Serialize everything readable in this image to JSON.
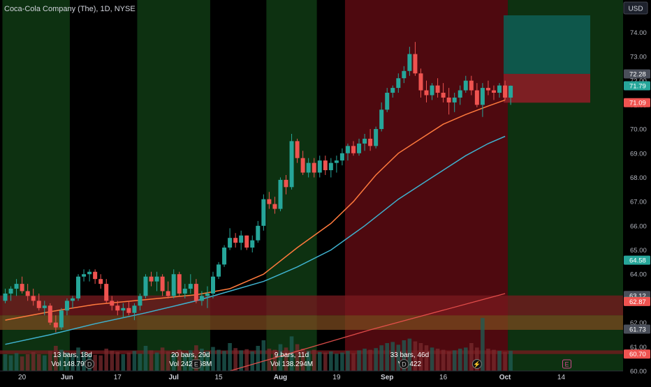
{
  "header": {
    "symbol_title": "Coca-Cola Company (The), 1D, NYSE",
    "currency_button": "USD"
  },
  "colors": {
    "background": "#000000",
    "up": "#26a69a",
    "down": "#ef5350",
    "ma_fast": "#ff7a3d",
    "ma_slow": "#3fb2cf",
    "zone_green": "#0f3a14",
    "zone_red": "#5c0b12",
    "band_red": "#7a1a1f",
    "band_orange": "#7a4a1f"
  },
  "chart_data": {
    "type": "candlestick",
    "ylim": [
      60.0,
      74.7
    ],
    "price_ticks": [
      "60.00",
      "61.00",
      "62.00",
      "63.00",
      "64.00",
      "65.00",
      "66.00",
      "67.00",
      "68.00",
      "69.00",
      "70.00",
      "71.00",
      "72.00",
      "73.00",
      "74.00"
    ],
    "price_labels": [
      {
        "text": "72.28",
        "value": 72.28,
        "bg": "#4a4f5a",
        "fg": "#ffffff"
      },
      {
        "text": "71.79",
        "value": 71.79,
        "bg": "#26a69a",
        "fg": "#ffffff"
      },
      {
        "text": "71.09",
        "value": 71.09,
        "bg": "#ef5350",
        "fg": "#ffffff"
      },
      {
        "text": "64.58",
        "value": 64.58,
        "bg": "#26a69a",
        "fg": "#ffffff"
      },
      {
        "text": "63.12",
        "value": 63.12,
        "bg": "#4a4f5a",
        "fg": "#ffffff"
      },
      {
        "text": "62.88",
        "value": 62.88,
        "bg": "#26a69a",
        "fg": "#ffffff"
      },
      {
        "text": "62.87",
        "value": 62.87,
        "bg": "#ef5350",
        "fg": "#ffffff"
      },
      {
        "text": "61.73",
        "value": 61.73,
        "bg": "#4a4f5a",
        "fg": "#ffffff"
      },
      {
        "text": "60.70",
        "value": 60.7,
        "bg": "#ef5350",
        "fg": "#ffffff"
      }
    ],
    "date_ticks": [
      {
        "label": "20",
        "index": 3
      },
      {
        "label": "Jun",
        "index": 11,
        "bold": true
      },
      {
        "label": "17",
        "index": 20
      },
      {
        "label": "Jul",
        "index": 30,
        "bold": true
      },
      {
        "label": "15",
        "index": 38
      },
      {
        "label": "Aug",
        "index": 49,
        "bold": true
      },
      {
        "label": "19",
        "index": 59
      },
      {
        "label": "Sep",
        "index": 68,
        "bold": true
      },
      {
        "label": "16",
        "index": 78
      },
      {
        "label": "Oct",
        "index": 89,
        "bold": true
      },
      {
        "label": "14",
        "index": 99
      }
    ],
    "candles": [
      [
        62.9,
        63.4,
        62.8,
        63.2
      ],
      [
        63.2,
        63.5,
        62.9,
        63.4
      ],
      [
        63.4,
        63.8,
        63.1,
        63.6
      ],
      [
        63.6,
        63.9,
        63.2,
        63.3
      ],
      [
        63.3,
        63.6,
        62.9,
        63.1
      ],
      [
        63.1,
        63.4,
        62.7,
        62.9
      ],
      [
        62.9,
        63.2,
        62.5,
        62.6
      ],
      [
        62.6,
        62.9,
        62.3,
        62.7
      ],
      [
        62.7,
        62.8,
        61.9,
        62.0
      ],
      [
        62.0,
        62.3,
        61.6,
        61.8
      ],
      [
        61.8,
        62.6,
        61.7,
        62.5
      ],
      [
        62.5,
        63.0,
        62.3,
        62.9
      ],
      [
        62.9,
        63.1,
        62.6,
        63.0
      ],
      [
        63.0,
        64.0,
        62.9,
        63.9
      ],
      [
        63.9,
        64.2,
        63.7,
        64.0
      ],
      [
        64.0,
        64.2,
        63.7,
        64.1
      ],
      [
        64.1,
        64.2,
        63.6,
        63.8
      ],
      [
        63.8,
        64.0,
        63.4,
        63.6
      ],
      [
        63.6,
        63.8,
        62.8,
        62.9
      ],
      [
        62.9,
        63.1,
        62.5,
        62.7
      ],
      [
        62.7,
        62.9,
        62.3,
        62.5
      ],
      [
        62.5,
        62.8,
        62.2,
        62.6
      ],
      [
        62.6,
        62.9,
        62.3,
        62.4
      ],
      [
        62.4,
        62.8,
        62.1,
        62.7
      ],
      [
        62.7,
        63.2,
        62.5,
        63.1
      ],
      [
        63.1,
        64.0,
        63.0,
        63.9
      ],
      [
        63.9,
        64.1,
        63.5,
        63.7
      ],
      [
        63.7,
        64.1,
        63.3,
        63.9
      ],
      [
        63.9,
        64.0,
        63.1,
        63.3
      ],
      [
        63.3,
        63.7,
        63.0,
        63.1
      ],
      [
        63.1,
        64.2,
        63.0,
        64.0
      ],
      [
        64.0,
        64.1,
        63.1,
        63.2
      ],
      [
        63.2,
        63.6,
        63.0,
        63.4
      ],
      [
        63.4,
        64.0,
        63.2,
        63.6
      ],
      [
        63.6,
        63.8,
        62.8,
        62.9
      ],
      [
        62.9,
        63.3,
        62.7,
        63.1
      ],
      [
        63.1,
        63.5,
        62.6,
        63.2
      ],
      [
        63.2,
        64.1,
        63.0,
        63.9
      ],
      [
        63.9,
        64.5,
        63.8,
        64.4
      ],
      [
        64.4,
        65.2,
        64.3,
        65.1
      ],
      [
        65.1,
        65.9,
        65.0,
        65.5
      ],
      [
        65.5,
        65.7,
        65.1,
        65.3
      ],
      [
        65.3,
        65.8,
        65.0,
        65.6
      ],
      [
        65.6,
        65.6,
        65.0,
        65.1
      ],
      [
        65.1,
        65.6,
        64.9,
        65.4
      ],
      [
        65.4,
        66.2,
        65.3,
        66.0
      ],
      [
        66.0,
        67.3,
        65.8,
        67.1
      ],
      [
        67.1,
        67.4,
        66.7,
        66.9
      ],
      [
        66.9,
        67.2,
        66.5,
        66.7
      ],
      [
        66.7,
        68.0,
        66.6,
        67.9
      ],
      [
        67.9,
        68.1,
        67.3,
        67.6
      ],
      [
        67.6,
        69.8,
        67.5,
        69.5
      ],
      [
        69.5,
        69.6,
        68.6,
        68.8
      ],
      [
        68.8,
        69.1,
        68.1,
        68.2
      ],
      [
        68.2,
        68.8,
        68.0,
        68.6
      ],
      [
        68.6,
        68.8,
        68.0,
        68.2
      ],
      [
        68.2,
        68.9,
        68.0,
        68.7
      ],
      [
        68.7,
        68.9,
        68.1,
        68.3
      ],
      [
        68.3,
        68.8,
        68.0,
        68.6
      ],
      [
        68.6,
        68.9,
        68.2,
        68.7
      ],
      [
        68.7,
        69.2,
        68.5,
        69.0
      ],
      [
        69.0,
        69.4,
        68.7,
        69.3
      ],
      [
        69.3,
        69.5,
        68.9,
        69.0
      ],
      [
        69.0,
        69.6,
        68.9,
        69.4
      ],
      [
        69.4,
        69.8,
        69.1,
        69.6
      ],
      [
        69.6,
        70.0,
        69.1,
        69.3
      ],
      [
        69.3,
        70.1,
        69.2,
        70.0
      ],
      [
        70.0,
        71.1,
        69.9,
        70.8
      ],
      [
        70.8,
        71.7,
        70.7,
        71.5
      ],
      [
        71.5,
        71.8,
        71.3,
        71.7
      ],
      [
        71.7,
        72.3,
        71.5,
        72.1
      ],
      [
        72.1,
        72.6,
        71.9,
        72.4
      ],
      [
        72.4,
        73.4,
        72.2,
        73.1
      ],
      [
        73.1,
        73.6,
        72.2,
        72.3
      ],
      [
        72.3,
        72.5,
        71.3,
        71.6
      ],
      [
        71.6,
        72.0,
        71.1,
        71.4
      ],
      [
        71.4,
        71.9,
        71.2,
        71.8
      ],
      [
        71.8,
        72.1,
        71.3,
        71.5
      ],
      [
        71.5,
        71.9,
        71.1,
        71.3
      ],
      [
        71.3,
        71.7,
        70.6,
        71.1
      ],
      [
        71.1,
        71.5,
        70.7,
        71.3
      ],
      [
        71.3,
        71.8,
        71.0,
        71.6
      ],
      [
        71.6,
        72.2,
        71.5,
        72.0
      ],
      [
        72.0,
        72.2,
        71.4,
        71.6
      ],
      [
        71.6,
        71.9,
        70.9,
        71.0
      ],
      [
        71.0,
        71.9,
        70.5,
        71.7
      ],
      [
        71.7,
        72.0,
        71.4,
        71.6
      ],
      [
        71.6,
        71.8,
        71.2,
        71.5
      ],
      [
        71.5,
        71.9,
        71.3,
        71.8
      ],
      [
        71.8,
        72.0,
        71.2,
        71.3
      ],
      [
        71.3,
        71.8,
        71.0,
        71.79
      ]
    ],
    "ma_fast": [
      [
        0,
        62.1
      ],
      [
        8,
        62.45
      ],
      [
        16,
        62.75
      ],
      [
        25,
        62.95
      ],
      [
        34,
        63.15
      ],
      [
        40,
        63.4
      ],
      [
        46,
        64.0
      ],
      [
        52,
        65.1
      ],
      [
        58,
        66.1
      ],
      [
        62,
        67.0
      ],
      [
        66,
        68.1
      ],
      [
        70,
        69.0
      ],
      [
        74,
        69.6
      ],
      [
        78,
        70.2
      ],
      [
        82,
        70.6
      ],
      [
        86,
        70.95
      ],
      [
        89,
        71.2
      ]
    ],
    "ma_slow": [
      [
        0,
        61.1
      ],
      [
        8,
        61.5
      ],
      [
        16,
        61.95
      ],
      [
        25,
        62.4
      ],
      [
        34,
        62.9
      ],
      [
        40,
        63.3
      ],
      [
        46,
        63.7
      ],
      [
        52,
        64.3
      ],
      [
        58,
        65.0
      ],
      [
        64,
        66.0
      ],
      [
        70,
        67.1
      ],
      [
        76,
        68.0
      ],
      [
        82,
        68.9
      ],
      [
        86,
        69.4
      ],
      [
        89,
        69.7
      ]
    ],
    "long_trend": [
      [
        40,
        60.0
      ],
      [
        65,
        61.7
      ],
      [
        89,
        63.2
      ]
    ],
    "volume": [
      0.3,
      0.28,
      0.32,
      0.26,
      0.3,
      0.34,
      0.3,
      0.28,
      0.36,
      0.45,
      0.38,
      0.33,
      0.3,
      0.42,
      0.35,
      0.31,
      0.29,
      0.28,
      0.4,
      0.36,
      0.34,
      0.3,
      0.33,
      0.36,
      0.31,
      0.45,
      0.37,
      0.33,
      0.42,
      0.35,
      0.31,
      0.38,
      0.32,
      0.37,
      0.46,
      0.4,
      0.35,
      0.43,
      0.38,
      0.36,
      0.5,
      0.41,
      0.37,
      0.39,
      0.35,
      0.45,
      0.55,
      0.4,
      0.38,
      0.48,
      0.42,
      0.62,
      0.48,
      0.4,
      0.36,
      0.38,
      0.34,
      0.33,
      0.35,
      0.31,
      0.33,
      0.36,
      0.32,
      0.37,
      0.4,
      0.38,
      0.41,
      0.46,
      0.5,
      0.52,
      0.47,
      0.55,
      0.58,
      0.53,
      0.5,
      0.46,
      0.42,
      0.4,
      0.38,
      0.35,
      0.37,
      0.4,
      0.42,
      0.5,
      0.42,
      0.95,
      0.4,
      0.38,
      0.36,
      0.34,
      0.36
    ],
    "zones": [
      {
        "type": "green",
        "start": -1,
        "end": 11
      },
      {
        "type": "black",
        "start": 11,
        "end": 23
      },
      {
        "type": "green",
        "start": 23,
        "end": 36
      },
      {
        "type": "black",
        "start": 36,
        "end": 46
      },
      {
        "type": "green",
        "start": 46,
        "end": 55
      },
      {
        "type": "black",
        "start": 55,
        "end": 60
      },
      {
        "type": "red",
        "start": 60,
        "end": 89
      },
      {
        "type": "green",
        "start": 89,
        "end": 110
      }
    ],
    "bands": [
      {
        "color": "red",
        "from": 62.3,
        "to": 63.12
      },
      {
        "color": "orange",
        "from": 61.7,
        "to": 62.3
      },
      {
        "color": "red",
        "from": 60.7,
        "to": 60.85
      }
    ],
    "position": {
      "start": 88,
      "end": 105,
      "entry": 72.28,
      "target": 74.7,
      "stop": 71.09
    },
    "measurements": [
      {
        "bars_label": "13 bars, 18d",
        "vol_label": "Vol 148.795M",
        "index": 12
      },
      {
        "bars_label": "20 bars, 29d",
        "vol_label": "Vol 242.468M",
        "index": 33
      },
      {
        "bars_label": "9 bars, 11d",
        "vol_label": "Vol 138.294M",
        "index": 51
      },
      {
        "bars_label": "33 bars, 46d",
        "vol_label": "Vol 422",
        "index": 72
      }
    ],
    "events": [
      {
        "icon": "D",
        "index": 15,
        "kind": "dividend"
      },
      {
        "icon": "E",
        "index": 34,
        "kind": "earnings"
      },
      {
        "icon": "D",
        "index": 71,
        "kind": "dividend"
      },
      {
        "icon": "⚡",
        "index": 84,
        "kind": "split"
      },
      {
        "icon": "E",
        "index": 100,
        "kind": "earnings-future"
      }
    ]
  }
}
